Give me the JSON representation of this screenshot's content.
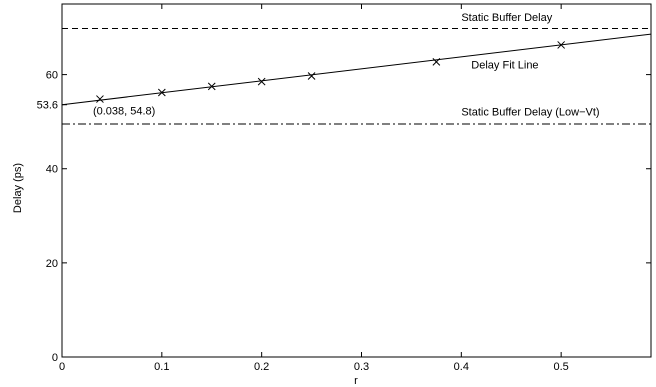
{
  "chart_data": {
    "type": "line",
    "xlabel": "r",
    "ylabel": "Delay (ps)",
    "xlim": [
      0,
      0.59
    ],
    "ylim": [
      0,
      75
    ],
    "grid": false,
    "x_ticks": [
      0,
      0.1,
      0.2,
      0.3,
      0.4,
      0.5
    ],
    "y_ticks": [
      0,
      20,
      40,
      60
    ],
    "extra_y_tick": 53.6,
    "extra_y_tick_label": "53.6",
    "series": [
      {
        "name": "Delay Fit Line",
        "kind": "line",
        "x": [
          0,
          0.59
        ],
        "y": [
          53.6,
          68.6
        ]
      },
      {
        "kind": "markers",
        "marker": "x",
        "x": [
          0.038,
          0.1,
          0.15,
          0.2,
          0.25,
          0.375,
          0.5
        ],
        "y": [
          54.8,
          56.2,
          57.5,
          58.5,
          59.7,
          62.7,
          66.3
        ]
      },
      {
        "name": "Static Buffer Delay",
        "kind": "hline",
        "style": "dashed",
        "y": 69.8
      },
      {
        "name": "Static Buffer Delay (Low−Vt)",
        "kind": "hline",
        "style": "dashdot",
        "y": 49.5
      }
    ],
    "annotations": [
      {
        "text": "Static Buffer Delay",
        "x": 0.4,
        "y": 71.4
      },
      {
        "text": "Delay Fit Line",
        "x": 0.41,
        "y": 61.3
      },
      {
        "text": "Static Buffer Delay (Low−Vt)",
        "x": 0.4,
        "y": 51.3
      },
      {
        "text": "(0.038, 54.8)",
        "x": 0.031,
        "y": 51.5
      }
    ]
  }
}
